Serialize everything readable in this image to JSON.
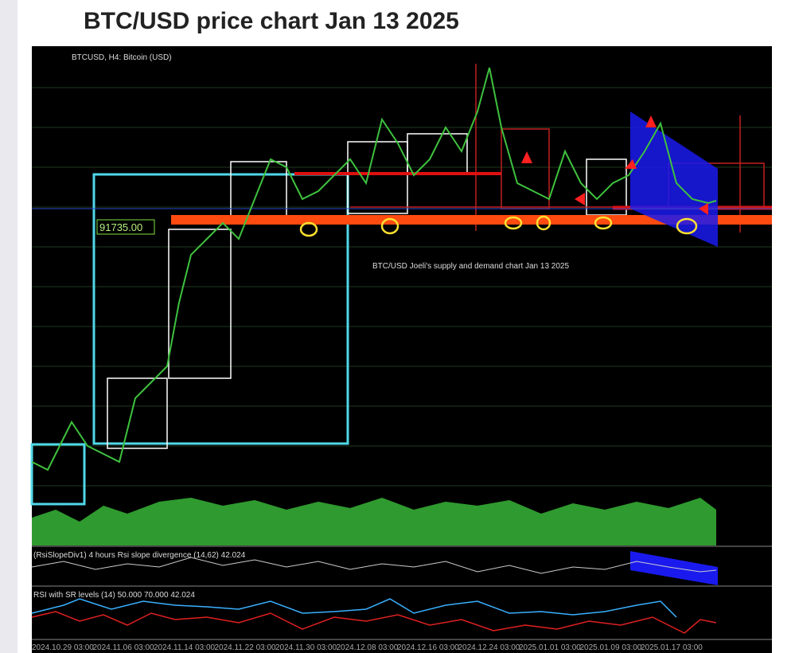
{
  "header": {
    "title": "BTC/USD price chart Jan 13 2025"
  },
  "chart": {
    "symbol": "BTCUSD, H4:  Bitcoin (USD)",
    "price_label": "91735.00",
    "annotation": "BTC/USD Joeli's supply and demand chart Jan 13 2025"
  },
  "panels": [
    {
      "label": "(RsiSlopeDiv1) 4 hours Rsi slope divergence (14,62) 42.024"
    },
    {
      "label": "RSI with SR levels (14) 50.000 70.000 42.024"
    }
  ],
  "x_axis": {
    "labels": [
      "2024.10.29 03:00",
      "2024.11.06 03:00",
      "2024.11.14 03:00",
      "2024.11.22 03:00",
      "2024.11.30 03:00",
      "2024.12.08 03:00",
      "2024.12.16 03:00",
      "2024.12.24 03:00",
      "2025.01.01 03:00",
      "2025.01.09 03:00",
      "2025.01.17 03:00"
    ]
  }
}
